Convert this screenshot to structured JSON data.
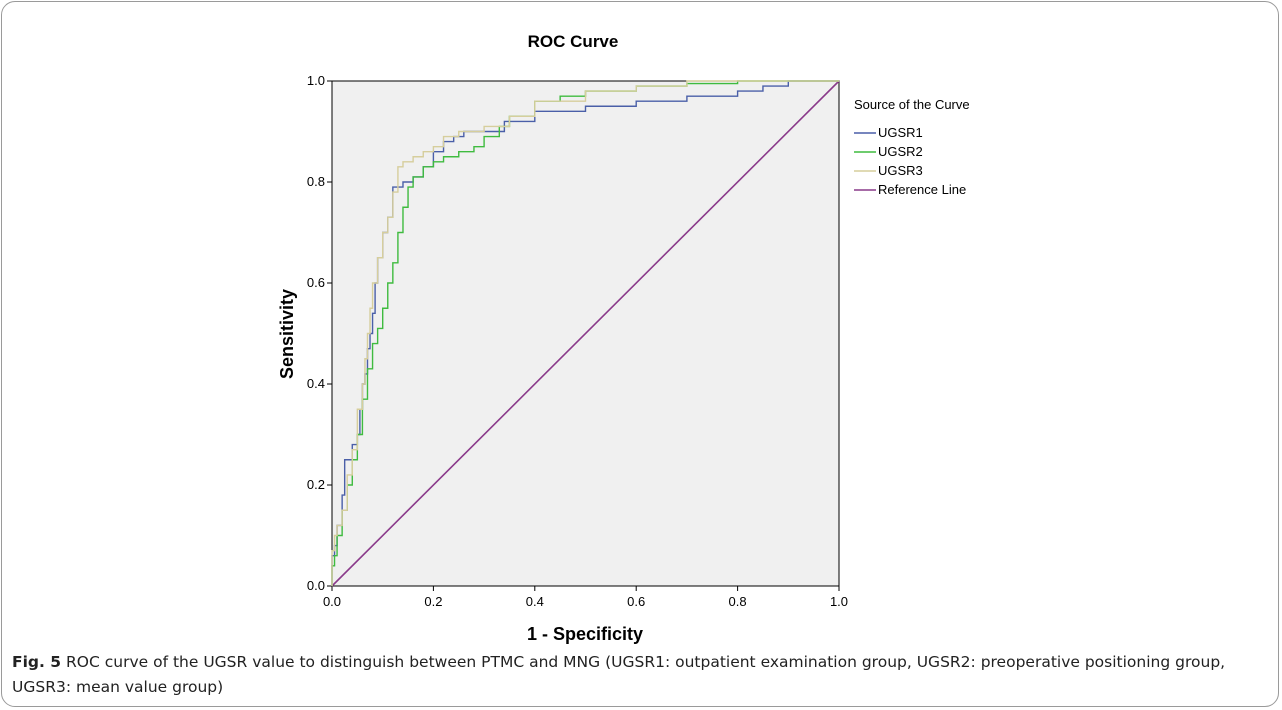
{
  "chart_data": {
    "type": "line",
    "title": "ROC Curve",
    "xlabel": "1 - Specificity",
    "ylabel": "Sensitivity",
    "xlim": [
      0,
      1
    ],
    "ylim": [
      0,
      1
    ],
    "xticks": [
      "0.0",
      "0.2",
      "0.4",
      "0.6",
      "0.8",
      "1.0"
    ],
    "yticks": [
      "0.0",
      "0.2",
      "0.4",
      "0.6",
      "0.8",
      "1.0"
    ],
    "grid": false,
    "legend_title": "Source of the Curve",
    "legend_position": "right",
    "series": [
      {
        "name": "UGSR1",
        "color": "#4a5fa8",
        "x": [
          0,
          0.005,
          0.01,
          0.02,
          0.025,
          0.03,
          0.04,
          0.05,
          0.055,
          0.06,
          0.065,
          0.07,
          0.075,
          0.08,
          0.085,
          0.09,
          0.1,
          0.11,
          0.12,
          0.13,
          0.14,
          0.15,
          0.16,
          0.18,
          0.2,
          0.22,
          0.24,
          0.26,
          0.3,
          0.34,
          0.4,
          0.5,
          0.6,
          0.7,
          0.8,
          0.85,
          0.9,
          0.95,
          1
        ],
        "y": [
          0,
          0.06,
          0.08,
          0.12,
          0.18,
          0.25,
          0.25,
          0.28,
          0.3,
          0.35,
          0.4,
          0.42,
          0.47,
          0.5,
          0.54,
          0.6,
          0.65,
          0.7,
          0.73,
          0.79,
          0.79,
          0.8,
          0.8,
          0.81,
          0.83,
          0.86,
          0.88,
          0.89,
          0.9,
          0.9,
          0.92,
          0.94,
          0.95,
          0.96,
          0.97,
          0.98,
          0.99,
          1.0,
          1.0
        ]
      },
      {
        "name": "UGSR2",
        "color": "#3fbb3f",
        "x": [
          0,
          0.005,
          0.01,
          0.02,
          0.03,
          0.04,
          0.05,
          0.06,
          0.07,
          0.08,
          0.09,
          0.1,
          0.11,
          0.12,
          0.13,
          0.14,
          0.15,
          0.16,
          0.18,
          0.2,
          0.22,
          0.25,
          0.28,
          0.3,
          0.33,
          0.35,
          0.4,
          0.45,
          0.5,
          0.6,
          0.7,
          0.8,
          0.9,
          1
        ],
        "y": [
          0,
          0.04,
          0.06,
          0.1,
          0.15,
          0.2,
          0.25,
          0.3,
          0.37,
          0.43,
          0.48,
          0.51,
          0.55,
          0.6,
          0.64,
          0.7,
          0.75,
          0.79,
          0.81,
          0.83,
          0.84,
          0.85,
          0.86,
          0.87,
          0.89,
          0.91,
          0.93,
          0.96,
          0.97,
          0.98,
          0.99,
          0.995,
          1.0,
          1.0
        ]
      },
      {
        "name": "UGSR3",
        "color": "#d6ce9c",
        "x": [
          0,
          0.005,
          0.01,
          0.02,
          0.03,
          0.04,
          0.05,
          0.06,
          0.065,
          0.07,
          0.075,
          0.08,
          0.09,
          0.1,
          0.11,
          0.12,
          0.13,
          0.14,
          0.16,
          0.18,
          0.2,
          0.22,
          0.25,
          0.3,
          0.35,
          0.4,
          0.5,
          0.6,
          0.7,
          0.8,
          0.9,
          1
        ],
        "y": [
          0,
          0.07,
          0.1,
          0.12,
          0.15,
          0.22,
          0.27,
          0.35,
          0.4,
          0.45,
          0.5,
          0.55,
          0.6,
          0.65,
          0.7,
          0.73,
          0.78,
          0.83,
          0.84,
          0.85,
          0.86,
          0.87,
          0.89,
          0.9,
          0.91,
          0.93,
          0.96,
          0.98,
          0.99,
          1.0,
          1.0,
          1.0
        ]
      },
      {
        "name": "Reference Line",
        "color": "#8a3a8a",
        "x": [
          0,
          1
        ],
        "y": [
          0,
          1
        ]
      }
    ]
  },
  "caption": {
    "label": "Fig. 5",
    "text": "ROC curve of the UGSR value to distinguish between PTMC and MNG (UGSR1: outpatient examination group, UGSR2: preoperative positioning group, UGSR3: mean value group)"
  }
}
